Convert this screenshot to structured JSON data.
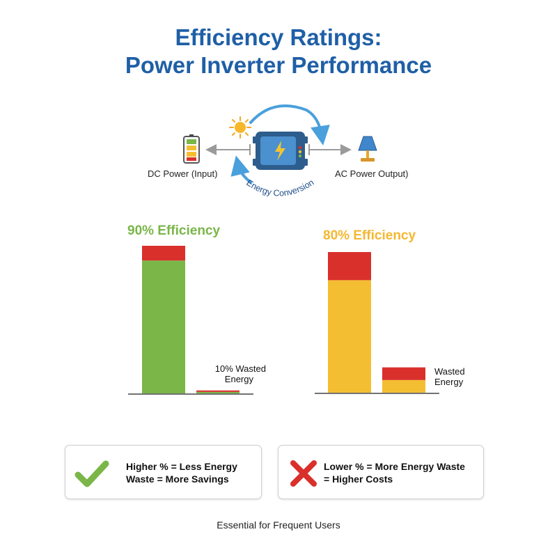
{
  "title": {
    "line1": "Efficiency Ratings:",
    "line2": "Power Inverter Performance"
  },
  "diagram": {
    "input_label": "DC Power (Input)",
    "output_label": "AC Power Output)",
    "conversion_label": "Energy Conversion",
    "icons": [
      "battery-icon",
      "sun-icon",
      "inverter-icon",
      "lamp-icon"
    ]
  },
  "chart_data": [
    {
      "type": "bar",
      "title": "90% Efficiency",
      "title_color": "#7ab648",
      "categories": [
        "",
        ""
      ],
      "series": [
        {
          "values": [
            90,
            1
          ],
          "color": "#7ab648"
        },
        {
          "values": [
            10,
            1
          ],
          "color": "#d9302c"
        }
      ],
      "bar_annotation": "10% Wasted Energy",
      "ylim": [
        0,
        100
      ]
    },
    {
      "type": "bar",
      "title": "80% Efficiency",
      "title_color": "#f4b731",
      "categories": [
        "",
        ""
      ],
      "series": [
        {
          "values": [
            80,
            9
          ],
          "color": "#f4be32"
        },
        {
          "values": [
            20,
            9
          ],
          "color": "#d9302c"
        }
      ],
      "bar_annotation": "Wasted Energy",
      "ylim": [
        0,
        100
      ]
    }
  ],
  "labels": {
    "left_annotation_line1": "10% Wasted",
    "left_annotation_line2": "Energy",
    "right_annotation_line1": "Wasted",
    "right_annotation_line2": "Energy"
  },
  "info_boxes": {
    "positive": {
      "icon": "checkmark-icon",
      "color": "#7ab648",
      "line1": "Higher % = Less Energy",
      "line2": "Waste = More Savings"
    },
    "negative": {
      "icon": "cross-icon",
      "color": "#d9302c",
      "line1": "Lower % = More Energy Waste",
      "line2": "= Higher Costs"
    }
  },
  "footer": "Essential for Frequent Users"
}
